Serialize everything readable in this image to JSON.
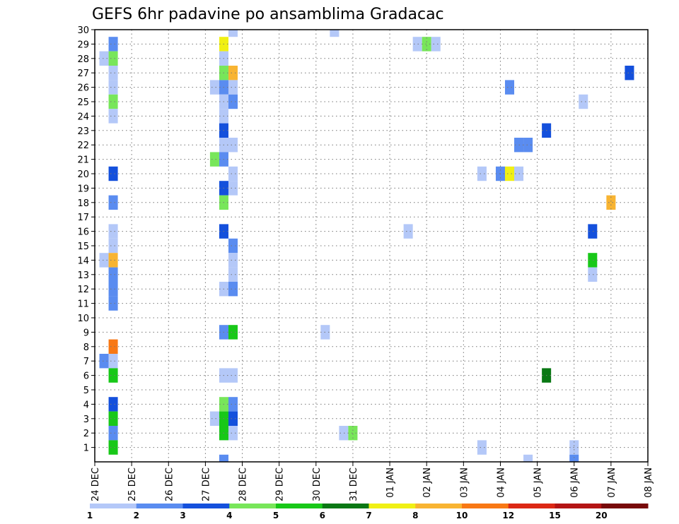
{
  "chart_data": {
    "type": "heatmap",
    "title": "GEFS 6hr padavine po ansamblima Gradacac",
    "x_axis": {
      "type": "time",
      "range_days": [
        0,
        15
      ],
      "tick_labels": [
        "24 DEC",
        "25 DEC",
        "26 DEC",
        "27 DEC",
        "28 DEC",
        "29 DEC",
        "30 DEC",
        "31 DEC",
        "01 JAN",
        "02 JAN",
        "03 JAN",
        "04 JAN",
        "05 JAN",
        "06 JAN",
        "07 JAN",
        "08 JAN"
      ]
    },
    "y_axis": {
      "label": "",
      "range": [
        0,
        30
      ],
      "tick_labels": [
        "1",
        "2",
        "3",
        "4",
        "5",
        "6",
        "7",
        "8",
        "9",
        "10",
        "11",
        "12",
        "13",
        "14",
        "15",
        "16",
        "17",
        "18",
        "19",
        "20",
        "21",
        "22",
        "23",
        "24",
        "25",
        "26",
        "27",
        "28",
        "29",
        "30"
      ]
    },
    "grid": "dotted",
    "colorbar": {
      "levels": [
        "1",
        "2",
        "3",
        "4",
        "5",
        "6",
        "7",
        "8",
        "10",
        "12",
        "15",
        "20"
      ],
      "colors": [
        "#b4c8f8",
        "#5a8cf0",
        "#1450dc",
        "#78e65a",
        "#18c818",
        "#0a7814",
        "#f0f014",
        "#f8b432",
        "#f87814",
        "#dc2814",
        "#b41414",
        "#780a0a"
      ]
    },
    "cells": [
      {
        "day": 0.5,
        "member": 29,
        "c": 1
      },
      {
        "day": 0.5,
        "member": 28,
        "c": 3
      },
      {
        "day": 0.25,
        "member": 28,
        "c": 0
      },
      {
        "day": 0.5,
        "member": 27,
        "c": 0
      },
      {
        "day": 0.5,
        "member": 26,
        "c": 0
      },
      {
        "day": 0.5,
        "member": 25,
        "c": 3
      },
      {
        "day": 0.5,
        "member": 24,
        "c": 0
      },
      {
        "day": 0.5,
        "member": 20,
        "c": 2
      },
      {
        "day": 0.5,
        "member": 18,
        "c": 1
      },
      {
        "day": 0.5,
        "member": 16,
        "c": 0
      },
      {
        "day": 0.5,
        "member": 15,
        "c": 0
      },
      {
        "day": 0.25,
        "member": 14,
        "c": 0
      },
      {
        "day": 0.5,
        "member": 14,
        "c": 7
      },
      {
        "day": 0.5,
        "member": 13,
        "c": 1
      },
      {
        "day": 0.5,
        "member": 12,
        "c": 1
      },
      {
        "day": 0.5,
        "member": 11,
        "c": 1
      },
      {
        "day": 0.5,
        "member": 8,
        "c": 8
      },
      {
        "day": 0.25,
        "member": 7,
        "c": 1
      },
      {
        "day": 0.5,
        "member": 7,
        "c": 0
      },
      {
        "day": 0.5,
        "member": 6,
        "c": 4
      },
      {
        "day": 0.5,
        "member": 4,
        "c": 2
      },
      {
        "day": 0.5,
        "member": 3,
        "c": 4
      },
      {
        "day": 0.5,
        "member": 2,
        "c": 1
      },
      {
        "day": 0.5,
        "member": 1,
        "c": 4
      },
      {
        "day": 3.5,
        "member": 29,
        "c": 6
      },
      {
        "day": 3.5,
        "member": 28,
        "c": 0
      },
      {
        "day": 3.5,
        "member": 27,
        "c": 3
      },
      {
        "day": 3.75,
        "member": 27,
        "c": 7
      },
      {
        "day": 3.25,
        "member": 26,
        "c": 0
      },
      {
        "day": 3.5,
        "member": 26,
        "c": 1
      },
      {
        "day": 3.75,
        "member": 26,
        "c": 0
      },
      {
        "day": 3.5,
        "member": 25,
        "c": 0
      },
      {
        "day": 3.75,
        "member": 25,
        "c": 1
      },
      {
        "day": 3.5,
        "member": 24,
        "c": 0
      },
      {
        "day": 3.5,
        "member": 23,
        "c": 2
      },
      {
        "day": 3.5,
        "member": 22,
        "c": 0
      },
      {
        "day": 3.75,
        "member": 22,
        "c": 0
      },
      {
        "day": 3.25,
        "member": 21,
        "c": 3
      },
      {
        "day": 3.5,
        "member": 21,
        "c": 1
      },
      {
        "day": 3.75,
        "member": 20,
        "c": 0
      },
      {
        "day": 3.5,
        "member": 19,
        "c": 2
      },
      {
        "day": 3.75,
        "member": 19,
        "c": 0
      },
      {
        "day": 3.5,
        "member": 18,
        "c": 3
      },
      {
        "day": 3.5,
        "member": 16,
        "c": 2
      },
      {
        "day": 3.75,
        "member": 15,
        "c": 1
      },
      {
        "day": 3.75,
        "member": 14,
        "c": 0
      },
      {
        "day": 3.75,
        "member": 13,
        "c": 0
      },
      {
        "day": 3.5,
        "member": 12,
        "c": 0
      },
      {
        "day": 3.75,
        "member": 12,
        "c": 1
      },
      {
        "day": 3.5,
        "member": 9,
        "c": 1
      },
      {
        "day": 3.75,
        "member": 9,
        "c": 4
      },
      {
        "day": 3.5,
        "member": 6,
        "c": 0
      },
      {
        "day": 3.75,
        "member": 6,
        "c": 0
      },
      {
        "day": 3.5,
        "member": 4,
        "c": 3
      },
      {
        "day": 3.75,
        "member": 4,
        "c": 1
      },
      {
        "day": 3.25,
        "member": 3,
        "c": 0
      },
      {
        "day": 3.5,
        "member": 3,
        "c": 4
      },
      {
        "day": 3.75,
        "member": 3,
        "c": 2
      },
      {
        "day": 3.5,
        "member": 2,
        "c": 4
      },
      {
        "day": 3.75,
        "member": 2,
        "c": 0
      },
      {
        "day": 3.5,
        "member": 0,
        "c": 1
      },
      {
        "day": 3.75,
        "member": 30,
        "c": 0
      },
      {
        "day": 6.25,
        "member": 9,
        "c": 0
      },
      {
        "day": 6.5,
        "member": 30,
        "c": 0
      },
      {
        "day": 6.75,
        "member": 2,
        "c": 0
      },
      {
        "day": 7.0,
        "member": 2,
        "c": 3
      },
      {
        "day": 8.75,
        "member": 29,
        "c": 0
      },
      {
        "day": 9.0,
        "member": 29,
        "c": 3
      },
      {
        "day": 9.25,
        "member": 29,
        "c": 0
      },
      {
        "day": 8.5,
        "member": 16,
        "c": 0
      },
      {
        "day": 10.5,
        "member": 20,
        "c": 0
      },
      {
        "day": 10.5,
        "member": 1,
        "c": 0
      },
      {
        "day": 11.0,
        "member": 20,
        "c": 1
      },
      {
        "day": 11.25,
        "member": 20,
        "c": 6
      },
      {
        "day": 11.5,
        "member": 20,
        "c": 0
      },
      {
        "day": 11.25,
        "member": 26,
        "c": 1
      },
      {
        "day": 11.5,
        "member": 22,
        "c": 1
      },
      {
        "day": 11.75,
        "member": 22,
        "c": 1
      },
      {
        "day": 11.75,
        "member": 0,
        "c": 0
      },
      {
        "day": 12.25,
        "member": 23,
        "c": 2
      },
      {
        "day": 12.25,
        "member": 6,
        "c": 5
      },
      {
        "day": 13.25,
        "member": 25,
        "c": 0
      },
      {
        "day": 13.0,
        "member": 1,
        "c": 0
      },
      {
        "day": 13.0,
        "member": 0,
        "c": 1
      },
      {
        "day": 13.5,
        "member": 16,
        "c": 2
      },
      {
        "day": 13.5,
        "member": 14,
        "c": 4
      },
      {
        "day": 13.5,
        "member": 13,
        "c": 0
      },
      {
        "day": 14.0,
        "member": 18,
        "c": 7
      },
      {
        "day": 14.5,
        "member": 27,
        "c": 2
      }
    ]
  }
}
